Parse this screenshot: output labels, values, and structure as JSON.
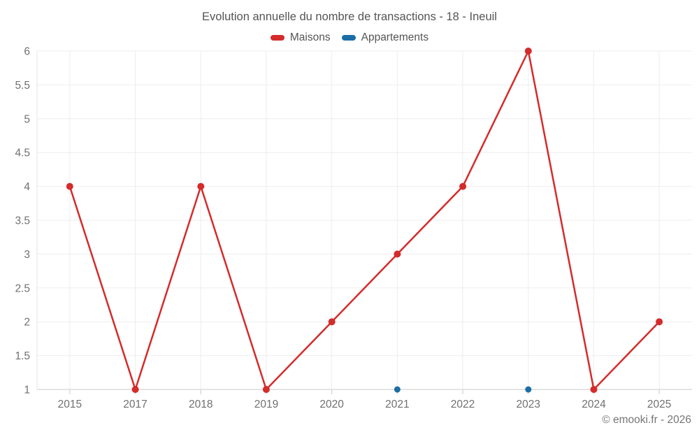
{
  "chart_data": {
    "type": "line",
    "title": "Evolution annuelle du nombre de transactions - 18 - Ineuil",
    "categories": [
      "2015",
      "2017",
      "2018",
      "2019",
      "2020",
      "2021",
      "2022",
      "2023",
      "2024",
      "2025"
    ],
    "series": [
      {
        "name": "Maisons",
        "color": "#d42b2b",
        "values": [
          4,
          1,
          4,
          1,
          2,
          3,
          4,
          6,
          1,
          2
        ]
      },
      {
        "name": "Appartements",
        "color": "#1b6ea5",
        "values": [
          null,
          null,
          null,
          null,
          null,
          1,
          null,
          1,
          null,
          null
        ]
      }
    ],
    "ylim": [
      1,
      6
    ],
    "ytick_step": 0.5,
    "xlabel": "",
    "ylabel": "",
    "grid": true,
    "legend_position": "top"
  },
  "footer": {
    "copyright": "© emooki.fr - 2026"
  },
  "colors": {
    "grid": "#ededed",
    "axis": "#c9c9c9",
    "y_axis_line": "#e4e4e4",
    "text": "#707070",
    "title_text": "#555555"
  }
}
